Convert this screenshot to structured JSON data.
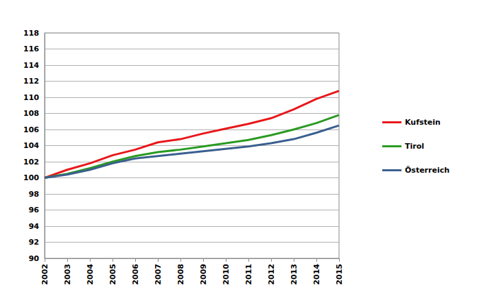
{
  "chart_data": {
    "type": "line",
    "categories": [
      "2002",
      "2003",
      "2004",
      "2005",
      "2006",
      "2007",
      "2008",
      "2009",
      "2010",
      "2011",
      "2012",
      "2013",
      "2014",
      "2015"
    ],
    "series": [
      {
        "name": "Kufstein",
        "color": "#e8171b",
        "values": [
          100,
          101.0,
          101.8,
          102.8,
          103.5,
          104.4,
          104.8,
          105.5,
          106.1,
          106.7,
          107.4,
          108.5,
          109.8,
          110.8
        ]
      },
      {
        "name": "Tirol",
        "color": "#2a9a22",
        "values": [
          100,
          100.5,
          101.2,
          102.0,
          102.7,
          103.2,
          103.5,
          103.9,
          104.3,
          104.7,
          105.3,
          106.0,
          106.8,
          107.8
        ]
      },
      {
        "name": "Österreich",
        "color": "#3a5f8f",
        "values": [
          100,
          100.4,
          101.0,
          101.8,
          102.4,
          102.7,
          103.0,
          103.3,
          103.6,
          103.9,
          104.3,
          104.8,
          105.6,
          106.5
        ]
      }
    ],
    "ylim": [
      90,
      118
    ],
    "yticks": [
      90,
      92,
      94,
      96,
      98,
      100,
      102,
      104,
      106,
      108,
      110,
      112,
      114,
      116,
      118
    ],
    "grid": true,
    "legend": "right"
  }
}
